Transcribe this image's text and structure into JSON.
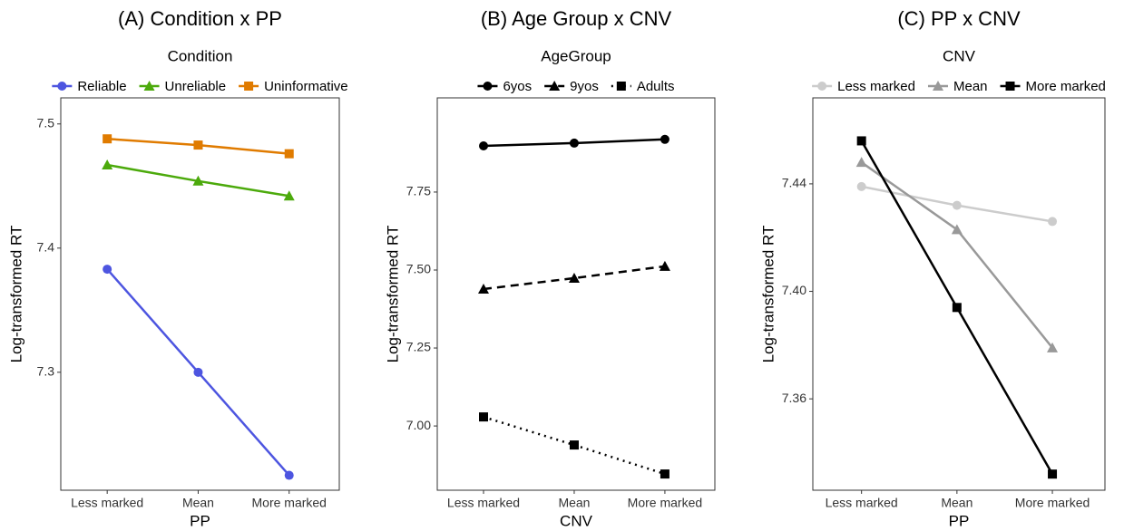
{
  "chart_data": [
    {
      "type": "line",
      "title": "(A) Condition x PP",
      "legend_title": "Condition",
      "xlabel": "PP",
      "ylabel": "Log-transformed RT",
      "categories": [
        "Less marked",
        "Mean",
        "More marked"
      ],
      "ylim": [
        7.205,
        7.521
      ],
      "yticks": [
        7.3,
        7.4,
        7.5
      ],
      "series": [
        {
          "name": "Reliable",
          "color": "#4d55e0",
          "marker": "circle",
          "dash": "solid",
          "values": [
            7.383,
            7.3,
            7.217
          ]
        },
        {
          "name": "Unreliable",
          "color": "#4caa0c",
          "marker": "triangle",
          "dash": "solid",
          "values": [
            7.467,
            7.454,
            7.442
          ]
        },
        {
          "name": "Uninformative",
          "color": "#e07b00",
          "marker": "square",
          "dash": "solid",
          "values": [
            7.488,
            7.483,
            7.476
          ]
        }
      ]
    },
    {
      "type": "line",
      "title": "(B) Age Group x CNV",
      "legend_title": "AgeGroup",
      "xlabel": "CNV",
      "ylabel": "Log-transformed RT",
      "categories": [
        "Less marked",
        "Mean",
        "More marked"
      ],
      "ylim": [
        6.794,
        8.052
      ],
      "yticks": [
        {
          "value": 7,
          "label": "7.00"
        },
        7.25,
        {
          "value": 7.5,
          "label": "7.50"
        },
        7.75
      ],
      "series": [
        {
          "name": "6yos",
          "color": "#000000",
          "marker": "circle",
          "dash": "solid",
          "values": [
            7.898,
            7.907,
            7.919
          ]
        },
        {
          "name": "9yos",
          "color": "#000000",
          "marker": "triangle",
          "dash": "dashed",
          "values": [
            7.439,
            7.474,
            7.512
          ]
        },
        {
          "name": "Adults",
          "color": "#000000",
          "marker": "square",
          "dash": "dotted",
          "values": [
            7.029,
            6.939,
            6.846
          ]
        }
      ]
    },
    {
      "type": "line",
      "title": "(C) PP x CNV",
      "legend_title": "CNV",
      "xlabel": "PP",
      "ylabel": "Log-transformed RT",
      "categories": [
        "Less marked",
        "Mean",
        "More marked"
      ],
      "ylim": [
        7.326,
        7.472
      ],
      "yticks": [
        7.36,
        {
          "value": 7.4,
          "label": "7.40"
        },
        7.44
      ],
      "series": [
        {
          "name": "Less marked",
          "color": "#cccccc",
          "marker": "circle",
          "dash": "solid",
          "values": [
            7.439,
            7.432,
            7.426
          ]
        },
        {
          "name": "Mean",
          "color": "#999999",
          "marker": "triangle",
          "dash": "solid",
          "values": [
            7.448,
            7.423,
            7.379
          ]
        },
        {
          "name": "More marked",
          "color": "#000000",
          "marker": "square",
          "dash": "solid",
          "values": [
            7.456,
            7.394,
            7.332
          ]
        }
      ]
    }
  ]
}
